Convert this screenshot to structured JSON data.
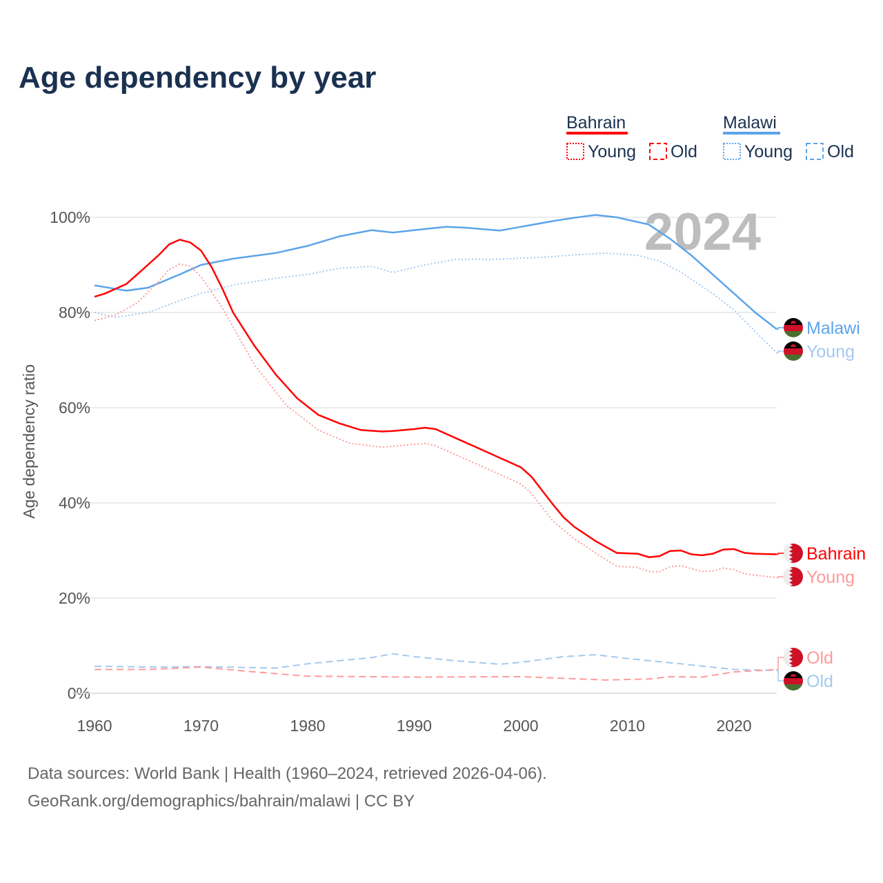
{
  "title": "Age dependency by year",
  "sources": [
    "Data sources: World Bank | Health (1960–2024, retrieved 2026-04-06).",
    "GeoRank.org/demographics/bahrain/malawi | CC BY"
  ],
  "year_watermark": "2024",
  "legend": {
    "groups": [
      {
        "name": "Bahrain",
        "color": "#ff0000",
        "items": [
          "Young",
          "Old"
        ]
      },
      {
        "name": "Malawi",
        "color": "#5ba4ea",
        "items": [
          "Young",
          "Old"
        ]
      }
    ]
  },
  "chart_data": {
    "type": "line",
    "title": "Age dependency by year",
    "xlabel": "",
    "ylabel": "Age dependency ratio",
    "xlim": [
      1960,
      2024
    ],
    "ylim": [
      0,
      100
    ],
    "xticks": [
      "1960",
      "1970",
      "1980",
      "1990",
      "2000",
      "2010",
      "2020"
    ],
    "yticks": [
      "0%",
      "20%",
      "40%",
      "60%",
      "80%",
      "100%"
    ],
    "grid": true,
    "series": [
      {
        "name": "Malawi",
        "label": "Malawi",
        "style": "solid",
        "color": "#5ba4ea",
        "x": [
          1960,
          1963,
          1965,
          1968,
          1970,
          1973,
          1977,
          1980,
          1983,
          1986,
          1988,
          1990,
          1993,
          1995,
          1998,
          2000,
          2003,
          2005,
          2007,
          2009,
          2012,
          2014,
          2016,
          2018,
          2020,
          2022,
          2024
        ],
        "y": [
          85.7,
          84.6,
          85.2,
          88,
          90,
          91.3,
          92.5,
          94,
          96,
          97.3,
          96.8,
          97.3,
          98,
          97.8,
          97.2,
          98,
          99.2,
          99.9,
          100.5,
          100,
          98.5,
          95.5,
          92,
          88,
          84,
          80,
          76.5
        ]
      },
      {
        "name": "Malawi Young",
        "label": "Young",
        "style": "dotted",
        "color": "#a3c9f0",
        "x": [
          1960,
          1962,
          1965,
          1968,
          1970,
          1973,
          1977,
          1980,
          1983,
          1986,
          1988,
          1991,
          1994,
          1998,
          2002,
          2005,
          2008,
          2011,
          2013,
          2015,
          2018,
          2020,
          2022,
          2024
        ],
        "y": [
          80,
          79,
          80,
          82.5,
          84,
          85.8,
          87.2,
          88,
          89.3,
          89.7,
          88.4,
          90,
          91.2,
          91.2,
          91.6,
          92.1,
          92.5,
          92,
          90.8,
          88.5,
          84,
          80.5,
          76,
          71.5
        ]
      },
      {
        "name": "Malawi Old",
        "label": "Old",
        "style": "dashed",
        "color": "#a3c9f0",
        "x": [
          1960,
          1965,
          1970,
          1977,
          1980,
          1986,
          1988,
          1990,
          1994,
          1998,
          2000,
          2004,
          2007,
          2010,
          2015,
          2020,
          2024
        ],
        "y": [
          5.7,
          5.5,
          5.6,
          5.3,
          6.2,
          7.5,
          8.3,
          7.7,
          6.8,
          6.1,
          6.5,
          7.7,
          8.1,
          7.3,
          6.2,
          5,
          4.8
        ]
      },
      {
        "name": "Bahrain",
        "label": "Bahrain",
        "style": "solid",
        "color": "#ff0000",
        "x": [
          1960,
          1961,
          1963,
          1964,
          1966,
          1967,
          1968,
          1969,
          1970,
          1971,
          1972,
          1973,
          1975,
          1977,
          1979,
          1981,
          1983,
          1985,
          1987,
          1988,
          1990,
          1991,
          1992,
          1994,
          1996,
          1998,
          2000,
          2001,
          2003,
          2004,
          2005,
          2007,
          2009,
          2011,
          2012,
          2013,
          2014,
          2015,
          2016,
          2017,
          2018,
          2019,
          2020,
          2021,
          2022,
          2024
        ],
        "y": [
          83.3,
          84,
          86,
          88,
          92,
          94.3,
          95.3,
          94.7,
          93,
          89.5,
          85,
          80,
          73,
          67,
          62,
          58.5,
          56.7,
          55.3,
          55,
          55.1,
          55.5,
          55.8,
          55.5,
          53.5,
          51.5,
          49.5,
          47.5,
          45.5,
          39.7,
          37,
          35,
          32,
          29.5,
          29.3,
          28.6,
          28.8,
          29.9,
          30,
          29.2,
          29,
          29.3,
          30.2,
          30.3,
          29.5,
          29.3,
          29.2
        ]
      },
      {
        "name": "Bahrain Young",
        "label": "Young",
        "style": "dotted",
        "color": "#ff9a9a",
        "x": [
          1960,
          1962,
          1964,
          1966,
          1967,
          1968,
          1969,
          1970,
          1972,
          1975,
          1978,
          1981,
          1984,
          1987,
          1991,
          1992,
          1995,
          2000,
          2001,
          2003,
          2005,
          2007,
          2009,
          2011,
          2012,
          2013,
          2014,
          2015,
          2017,
          2018,
          2019,
          2020,
          2021,
          2022,
          2024
        ],
        "y": [
          78.3,
          79.5,
          82,
          86.5,
          89,
          90.2,
          89.7,
          87.5,
          81,
          69,
          60.5,
          55.3,
          52.5,
          51.7,
          52.5,
          52,
          49,
          44,
          42,
          36.2,
          32.5,
          29.5,
          26.7,
          26.4,
          25.6,
          25.5,
          26.6,
          26.8,
          25.6,
          25.7,
          26.3,
          26,
          25.1,
          24.8,
          24.3
        ]
      },
      {
        "name": "Bahrain Old",
        "label": "Old",
        "style": "dashed",
        "color": "#ff9a9a",
        "x": [
          1960,
          1965,
          1970,
          1975,
          1980,
          1990,
          2000,
          2008,
          2012,
          2014,
          2017,
          2020,
          2024
        ],
        "y": [
          5,
          5,
          5.5,
          4.5,
          3.6,
          3.4,
          3.5,
          2.8,
          3,
          3.5,
          3.4,
          4.5,
          5
        ]
      }
    ]
  }
}
